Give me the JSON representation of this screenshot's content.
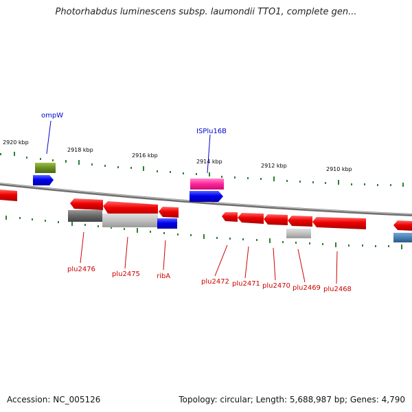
{
  "header": {
    "title": "Photorhabdus luminescens subsp. laumondii TTO1, complete gen..."
  },
  "footer": {
    "accession": "Accession: NC_005126",
    "topology": "Topology: circular; Length: 5,688,987 bp; Genes: 4,790"
  },
  "ruler_labels": [
    "2920 kbp",
    "2918 kbp",
    "2916 kbp",
    "2914 kbp",
    "2912 kbp",
    "2910 kbp"
  ],
  "gene_labels": {
    "ompW": "ompW",
    "ISPlu16B": "ISPlu16B",
    "plu2476": "plu2476",
    "plu2475": "plu2475",
    "ribA": "ribA",
    "plu2472": "plu2472",
    "plu2471": "plu2471",
    "plu2470": "plu2470",
    "plu2469": "plu2469",
    "plu2468": "plu2468"
  },
  "colors": {
    "forward_strand": "#0000ee",
    "reverse_strand": "#ee0000",
    "transposon": "#ff33aa",
    "olive_gene": "#6b8e23",
    "gray_gene": "#666666",
    "tick_green": "#2e7d32",
    "backbone": "#888888"
  }
}
